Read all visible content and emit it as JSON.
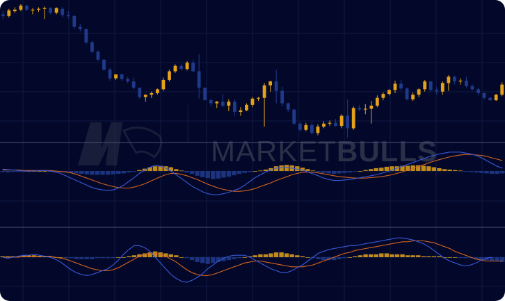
{
  "colors": {
    "background": "#03082a",
    "grid": "#101a44",
    "separator": "#4a5274",
    "bull": "#e3a21a",
    "bear": "#1f3a8a",
    "macd_line": "#3a59d6",
    "signal_line": "#d4631f",
    "watermark": "#2a3048"
  },
  "watermark": {
    "text_light": "MARKET",
    "text_bold": "BULLS"
  },
  "chart_data": [
    {
      "type": "candlestick",
      "title": "",
      "xlabel": "",
      "ylabel": "",
      "grid": true,
      "ylim": [
        0,
        100
      ],
      "candles": [
        {
          "o": 18,
          "h": 22,
          "l": 12,
          "c": 16
        },
        {
          "o": 16,
          "h": 25,
          "l": 14,
          "c": 23
        },
        {
          "o": 22,
          "h": 27,
          "l": 20,
          "c": 24
        },
        {
          "o": 24,
          "h": 31,
          "l": 22,
          "c": 29
        },
        {
          "o": 29,
          "h": 30,
          "l": 22,
          "c": 24
        },
        {
          "o": 23,
          "h": 26,
          "l": 18,
          "c": 24
        },
        {
          "o": 24,
          "h": 27,
          "l": 21,
          "c": 25
        },
        {
          "o": 25,
          "h": 28,
          "l": 12,
          "c": 26
        },
        {
          "o": 26,
          "h": 27,
          "l": 18,
          "c": 20
        },
        {
          "o": 20,
          "h": 27,
          "l": 18,
          "c": 26
        },
        {
          "o": 25,
          "h": 27,
          "l": 14,
          "c": 17
        },
        {
          "o": 17,
          "h": 22,
          "l": 13,
          "c": 16
        },
        {
          "o": 16,
          "h": 17,
          "l": -1,
          "c": 2
        },
        {
          "o": 2,
          "h": 6,
          "l": -4,
          "c": -1
        },
        {
          "o": -1,
          "h": 0,
          "l": -20,
          "c": -18
        },
        {
          "o": -18,
          "h": -16,
          "l": -32,
          "c": -30
        },
        {
          "o": -30,
          "h": -28,
          "l": -42,
          "c": -40
        },
        {
          "o": -40,
          "h": -40,
          "l": -54,
          "c": -53
        },
        {
          "o": -53,
          "h": -51,
          "l": -67,
          "c": -64
        },
        {
          "o": -64,
          "h": -59,
          "l": -66,
          "c": -59
        },
        {
          "o": -59,
          "h": -58,
          "l": -67,
          "c": -65
        },
        {
          "o": -65,
          "h": -62,
          "l": -70,
          "c": -68
        },
        {
          "o": -68,
          "h": -63,
          "l": -78,
          "c": -76
        },
        {
          "o": -76,
          "h": -76,
          "l": -90,
          "c": -88
        },
        {
          "o": -88,
          "h": -85,
          "l": -94,
          "c": -85
        },
        {
          "o": -85,
          "h": -81,
          "l": -89,
          "c": -83
        },
        {
          "o": -83,
          "h": -77,
          "l": -85,
          "c": -78
        },
        {
          "o": -78,
          "h": -63,
          "l": -80,
          "c": -66
        },
        {
          "o": -66,
          "h": -53,
          "l": -68,
          "c": -55
        },
        {
          "o": -55,
          "h": -46,
          "l": -57,
          "c": -48
        },
        {
          "o": -48,
          "h": -45,
          "l": -54,
          "c": -52
        },
        {
          "o": -52,
          "h": -42,
          "l": -54,
          "c": -44
        },
        {
          "o": -44,
          "h": -40,
          "l": -56,
          "c": -55
        },
        {
          "o": -55,
          "h": -33,
          "l": -90,
          "c": -76
        },
        {
          "o": -76,
          "h": -76,
          "l": -92,
          "c": -92
        },
        {
          "o": -92,
          "h": -90,
          "l": -100,
          "c": -96
        },
        {
          "o": -96,
          "h": -93,
          "l": -102,
          "c": -94
        },
        {
          "o": -94,
          "h": -84,
          "l": -101,
          "c": -99
        },
        {
          "o": -99,
          "h": -91,
          "l": -106,
          "c": -94
        },
        {
          "o": -94,
          "h": -91,
          "l": -112,
          "c": -107
        },
        {
          "o": -107,
          "h": -101,
          "l": -112,
          "c": -105
        },
        {
          "o": -105,
          "h": -96,
          "l": -106,
          "c": -98
        },
        {
          "o": -98,
          "h": -88,
          "l": -101,
          "c": -90
        },
        {
          "o": -90,
          "h": -88,
          "l": -93,
          "c": -89
        },
        {
          "o": -89,
          "h": -70,
          "l": -126,
          "c": -73
        },
        {
          "o": -73,
          "h": -67,
          "l": -81,
          "c": -68
        },
        {
          "o": -68,
          "h": -53,
          "l": -96,
          "c": -80
        },
        {
          "o": -80,
          "h": -75,
          "l": -100,
          "c": -96
        },
        {
          "o": -96,
          "h": -95,
          "l": -107,
          "c": -104
        },
        {
          "o": -104,
          "h": -103,
          "l": -124,
          "c": -122
        },
        {
          "o": -122,
          "h": -120,
          "l": -133,
          "c": -130
        },
        {
          "o": -130,
          "h": -121,
          "l": -132,
          "c": -124
        },
        {
          "o": -124,
          "h": -120,
          "l": -136,
          "c": -134
        },
        {
          "o": -134,
          "h": -123,
          "l": -137,
          "c": -126
        },
        {
          "o": -126,
          "h": -119,
          "l": -128,
          "c": -122
        },
        {
          "o": -122,
          "h": -118,
          "l": -125,
          "c": -121
        },
        {
          "o": -121,
          "h": -116,
          "l": -126,
          "c": -125
        },
        {
          "o": -125,
          "h": -110,
          "l": -128,
          "c": -112
        },
        {
          "o": -112,
          "h": -91,
          "l": -140,
          "c": -128
        },
        {
          "o": -128,
          "h": -100,
          "l": -130,
          "c": -102
        },
        {
          "o": -102,
          "h": -98,
          "l": -106,
          "c": -104
        },
        {
          "o": -104,
          "h": -97,
          "l": -110,
          "c": -103
        },
        {
          "o": -103,
          "h": -93,
          "l": -122,
          "c": -99
        },
        {
          "o": -99,
          "h": -86,
          "l": -101,
          "c": -89
        },
        {
          "o": -89,
          "h": -82,
          "l": -92,
          "c": -84
        },
        {
          "o": -84,
          "h": -78,
          "l": -86,
          "c": -79
        },
        {
          "o": -79,
          "h": -67,
          "l": -83,
          "c": -71
        },
        {
          "o": -71,
          "h": -66,
          "l": -80,
          "c": -77
        },
        {
          "o": -77,
          "h": -76,
          "l": -92,
          "c": -91
        },
        {
          "o": -91,
          "h": -82,
          "l": -93,
          "c": -85
        },
        {
          "o": -85,
          "h": -77,
          "l": -88,
          "c": -78
        },
        {
          "o": -78,
          "h": -66,
          "l": -81,
          "c": -68
        },
        {
          "o": -68,
          "h": -68,
          "l": -81,
          "c": -79
        },
        {
          "o": -79,
          "h": -75,
          "l": -85,
          "c": -81
        },
        {
          "o": -81,
          "h": -68,
          "l": -85,
          "c": -70
        },
        {
          "o": -70,
          "h": -60,
          "l": -80,
          "c": -62
        },
        {
          "o": -62,
          "h": -61,
          "l": -72,
          "c": -68
        },
        {
          "o": -68,
          "h": -64,
          "l": -72,
          "c": -67
        },
        {
          "o": -67,
          "h": -62,
          "l": -76,
          "c": -74
        },
        {
          "o": -74,
          "h": -72,
          "l": -80,
          "c": -78
        },
        {
          "o": -78,
          "h": -76,
          "l": -86,
          "c": -83
        },
        {
          "o": -83,
          "h": -82,
          "l": -91,
          "c": -89
        },
        {
          "o": -89,
          "h": -88,
          "l": -93,
          "c": -92
        },
        {
          "o": -92,
          "h": -84,
          "l": -93,
          "c": -85
        },
        {
          "o": -85,
          "h": -69,
          "l": -87,
          "c": -72
        }
      ]
    },
    {
      "type": "macd",
      "title": "",
      "histogram": [
        -2,
        -3,
        -2,
        -1,
        -1,
        0,
        0,
        0,
        0,
        -1,
        -1,
        -2,
        -3,
        -4,
        -5,
        -6,
        -7,
        -8,
        -8,
        -8,
        -8,
        -7,
        -6,
        -5,
        -3,
        -1,
        2,
        5,
        8,
        10,
        11,
        10,
        8,
        4,
        1,
        -3,
        -6,
        -10,
        -13,
        -15,
        -17,
        -16,
        -14,
        -12,
        -9,
        -6,
        -4,
        -2,
        0,
        1,
        3,
        6,
        10,
        12,
        13,
        12,
        10,
        7,
        4,
        1,
        -2,
        -4,
        -5,
        -6,
        -5,
        -4,
        -3,
        -1,
        0,
        2,
        4,
        6,
        7,
        9,
        10,
        10,
        11,
        11,
        12,
        12,
        11,
        10,
        8,
        6,
        4,
        3,
        2,
        1,
        -1,
        -2,
        -3,
        -4,
        -5,
        -6,
        -6,
        -5
      ],
      "macd": [
        4,
        3,
        2,
        1,
        0,
        0,
        0,
        1,
        1,
        0,
        -2,
        -5,
        -10,
        -15,
        -20,
        -25,
        -30,
        -35,
        -38,
        -40,
        -41,
        -40,
        -36,
        -30,
        -22,
        -14,
        -5,
        2,
        8,
        12,
        10,
        6,
        0,
        -8,
        -16,
        -24,
        -32,
        -38,
        -44,
        -48,
        -50,
        -50,
        -48,
        -45,
        -41,
        -37,
        -30,
        -22,
        -14,
        -8,
        -2,
        2,
        6,
        7,
        8,
        6,
        4,
        2,
        -2,
        -6,
        -10,
        -15,
        -18,
        -20,
        -20,
        -19,
        -18,
        -16,
        -14,
        -12,
        -10,
        -8,
        -5,
        -2,
        2,
        6,
        10,
        14,
        18,
        22,
        26,
        30,
        33,
        36,
        38,
        40,
        40,
        40,
        38,
        36,
        33,
        28,
        22,
        16,
        10,
        6
      ],
      "signal": [
        2,
        2,
        2,
        2,
        1,
        1,
        1,
        1,
        1,
        1,
        0,
        -1,
        -2,
        -4,
        -7,
        -11,
        -15,
        -19,
        -23,
        -27,
        -30,
        -33,
        -35,
        -36,
        -36,
        -34,
        -31,
        -27,
        -22,
        -17,
        -12,
        -8,
        -5,
        -5,
        -7,
        -10,
        -14,
        -18,
        -23,
        -28,
        -32,
        -36,
        -39,
        -41,
        -43,
        -43,
        -42,
        -40,
        -37,
        -33,
        -29,
        -25,
        -20,
        -16,
        -12,
        -8,
        -5,
        -3,
        -2,
        -3,
        -4,
        -6,
        -8,
        -10,
        -12,
        -13,
        -14,
        -15,
        -15,
        -15,
        -14,
        -13,
        -12,
        -10,
        -8,
        -5,
        -2,
        2,
        5,
        9,
        13,
        17,
        21,
        24,
        27,
        30,
        32,
        34,
        35,
        35,
        34,
        33,
        31,
        28,
        25,
        22
      ]
    },
    {
      "type": "macd",
      "title": "",
      "histogram": [
        1,
        1,
        1,
        1,
        2,
        2,
        2,
        1,
        1,
        1,
        0,
        0,
        -1,
        -1,
        -2,
        -2,
        -2,
        -2,
        -1,
        -1,
        -1,
        -1,
        0,
        0,
        1,
        2,
        3,
        4,
        5,
        6,
        5,
        4,
        3,
        2,
        0,
        -1,
        -3,
        -5,
        -6,
        -7,
        -6,
        -5,
        -4,
        -3,
        -2,
        -1,
        0,
        1,
        2,
        3,
        3,
        4,
        5,
        5,
        4,
        3,
        2,
        1,
        0,
        -1,
        -2,
        -3,
        -3,
        -3,
        -2,
        -1,
        0,
        1,
        2,
        3,
        3,
        3,
        4,
        4,
        3,
        3,
        3,
        2,
        2,
        2,
        1,
        1,
        1,
        1,
        0,
        0,
        0,
        -1,
        -1,
        -1,
        -2,
        -3,
        -3,
        -4,
        -4,
        -5
      ],
      "macd": [
        0,
        -1,
        0,
        1,
        2,
        2,
        3,
        2,
        1,
        0,
        -2,
        -5,
        -9,
        -13,
        -16,
        -18,
        -19,
        -18,
        -16,
        -14,
        -12,
        -8,
        -3,
        3,
        8,
        12,
        12,
        10,
        6,
        0,
        -6,
        -12,
        -18,
        -22,
        -25,
        -26,
        -24,
        -21,
        -17,
        -12,
        -8,
        -4,
        -1,
        1,
        2,
        2,
        2,
        0,
        -3,
        -6,
        -9,
        -12,
        -14,
        -16,
        -16,
        -14,
        -11,
        -8,
        -4,
        0,
        4,
        6,
        8,
        9,
        10,
        11,
        12,
        12,
        13,
        14,
        15,
        16,
        17,
        18,
        19,
        20,
        20,
        19,
        18,
        16,
        14,
        11,
        7,
        3,
        -1,
        -4,
        -6,
        -8,
        -9,
        -8,
        -6,
        -3,
        -1,
        0
      ],
      "signal": [
        0,
        0,
        0,
        0,
        1,
        1,
        1,
        1,
        1,
        1,
        0,
        -1,
        -2,
        -4,
        -6,
        -8,
        -10,
        -12,
        -13,
        -14,
        -14,
        -13,
        -11,
        -8,
        -5,
        -2,
        1,
        3,
        4,
        4,
        3,
        1,
        -2,
        -5,
        -9,
        -13,
        -16,
        -18,
        -19,
        -19,
        -18,
        -16,
        -14,
        -12,
        -10,
        -8,
        -6,
        -5,
        -4,
        -4,
        -5,
        -6,
        -7,
        -8,
        -9,
        -10,
        -10,
        -10,
        -9,
        -8,
        -6,
        -4,
        -2,
        0,
        2,
        4,
        5,
        7,
        8,
        9,
        10,
        11,
        12,
        13,
        14,
        15,
        16,
        16,
        17,
        17,
        17,
        16,
        15,
        13,
        11,
        9,
        6,
        4,
        2,
        0,
        -2,
        -3,
        -4,
        -4,
        -4,
        -4
      ]
    }
  ]
}
